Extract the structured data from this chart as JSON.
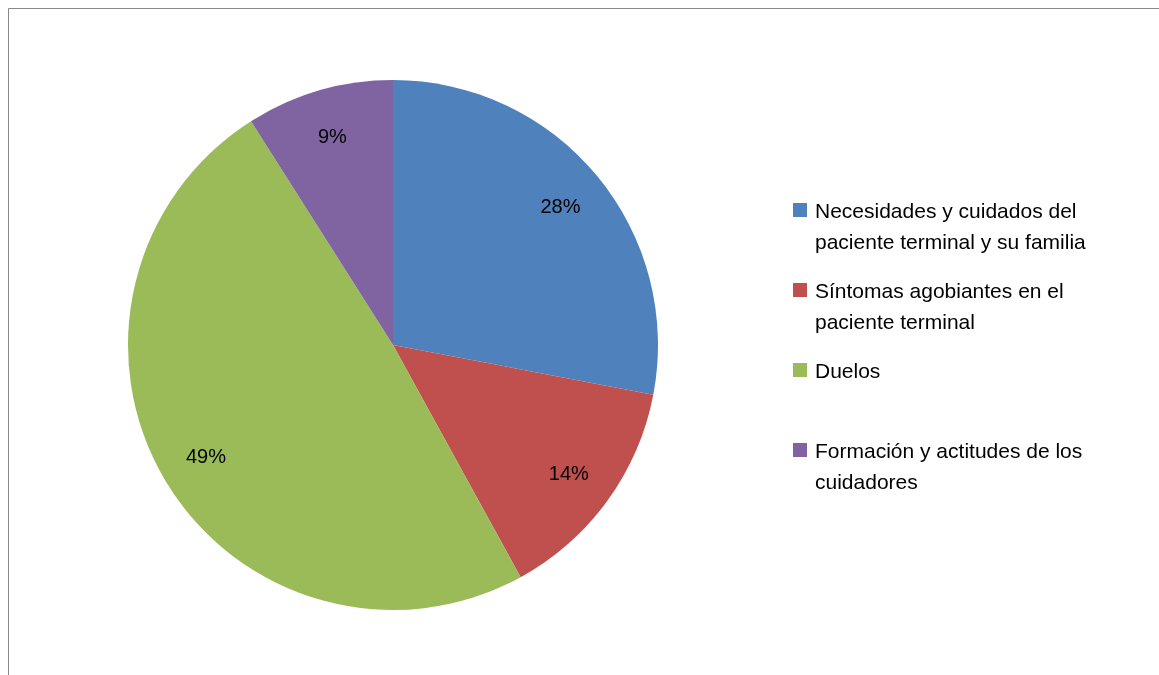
{
  "chart_data": {
    "type": "pie",
    "categories": [
      "Necesidades y cuidados del paciente terminal y su familia",
      "Síntomas agobiantes en el paciente terminal",
      "Duelos",
      "Formación y actitudes de los cuidadores"
    ],
    "values": [
      28,
      14,
      49,
      9
    ],
    "colors": [
      "#4f81bd",
      "#c0504d",
      "#9bbb59",
      "#8064a2"
    ],
    "value_labels": [
      "28%",
      "14%",
      "49%",
      "9%"
    ],
    "legend": "right"
  }
}
